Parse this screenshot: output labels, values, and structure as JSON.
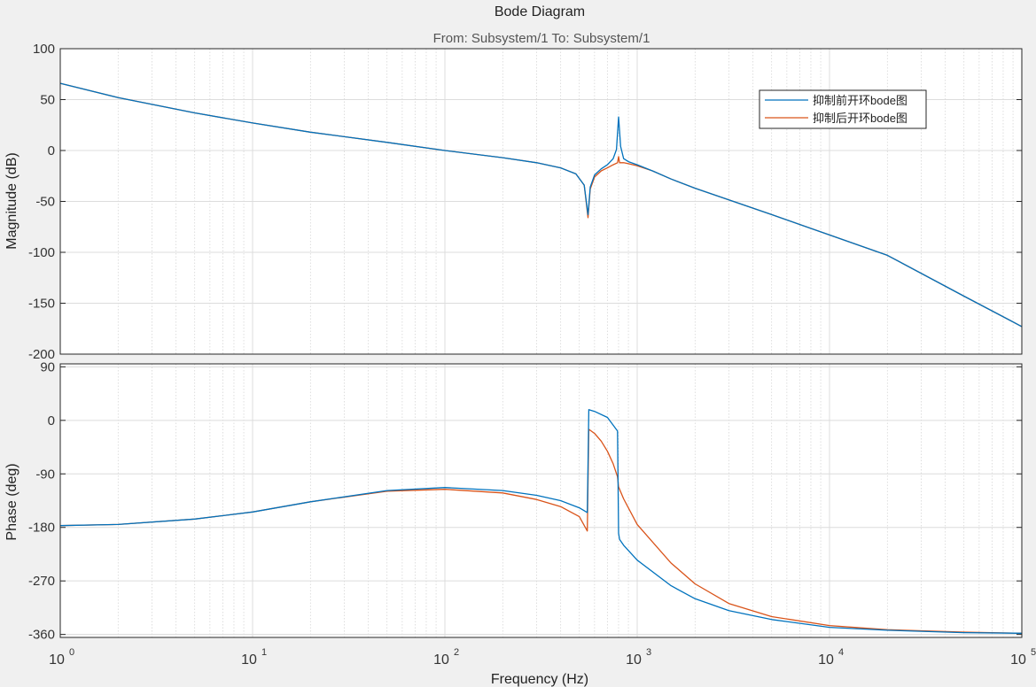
{
  "window": {
    "title": "Bode Diagram",
    "subtitle": "From: Subsystem/1  To: Subsystem/1"
  },
  "chart_data": {
    "type": "line",
    "title": "Bode Diagram",
    "subtitle": "From: Subsystem/1  To: Subsystem/1",
    "xlabel": "Frequency  (Hz)",
    "xscale": "log",
    "xlim": [
      1,
      100000
    ],
    "x_ticks": [
      {
        "base": "10",
        "exp": "0"
      },
      {
        "base": "10",
        "exp": "1"
      },
      {
        "base": "10",
        "exp": "2"
      },
      {
        "base": "10",
        "exp": "3"
      },
      {
        "base": "10",
        "exp": "4"
      },
      {
        "base": "10",
        "exp": "5"
      }
    ],
    "grid": true,
    "colors": {
      "before": "#0072bd",
      "after": "#d95319"
    },
    "legend": {
      "placement": "top-right",
      "entries": [
        "抑制前开环bode图",
        "抑制后开环bode图"
      ]
    },
    "magnitude": {
      "ylabel": "Magnitude (dB)",
      "ylim": [
        -200,
        100
      ],
      "yticks": [
        100,
        50,
        0,
        -50,
        -100,
        -150,
        -200
      ],
      "series": [
        {
          "name": "抑制前开环bode图",
          "x": [
            1,
            2,
            5,
            10,
            20,
            50,
            100,
            200,
            300,
            400,
            480,
            530,
            555,
            570,
            600,
            650,
            700,
            750,
            780,
            800,
            820,
            850,
            900,
            1000,
            1200,
            1500,
            2000,
            5000,
            10000,
            20000,
            50000,
            100000
          ],
          "y": [
            66,
            52,
            37,
            27,
            18,
            8,
            0,
            -7,
            -12,
            -17,
            -23,
            -34,
            -63,
            -36,
            -24,
            -18,
            -14,
            -8,
            1,
            33,
            4,
            -8,
            -11,
            -14,
            -20,
            -28,
            -37,
            -63,
            -83,
            -103,
            -143,
            -173
          ]
        },
        {
          "name": "抑制后开环bode图",
          "x": [
            1,
            2,
            5,
            10,
            20,
            50,
            100,
            200,
            300,
            400,
            480,
            530,
            555,
            570,
            600,
            650,
            700,
            750,
            790,
            800,
            810,
            850,
            900,
            1000,
            1200,
            1500,
            2000,
            5000,
            10000,
            20000,
            50000,
            100000
          ],
          "y": [
            66,
            52,
            37,
            27,
            18,
            8,
            0,
            -7,
            -12,
            -17,
            -23,
            -34,
            -66,
            -38,
            -26,
            -20,
            -17,
            -14,
            -12,
            -6,
            -12,
            -12,
            -13,
            -15,
            -20,
            -28,
            -37,
            -63,
            -83,
            -103,
            -143,
            -173
          ]
        }
      ]
    },
    "phase": {
      "ylabel": "Phase (deg)",
      "ylim": [
        -365,
        95
      ],
      "yticks": [
        90,
        0,
        -90,
        -180,
        -270,
        -360
      ],
      "series": [
        {
          "name": "抑制前开环bode图",
          "x": [
            1,
            2,
            5,
            10,
            20,
            50,
            100,
            200,
            300,
            400,
            500,
            550,
            560,
            600,
            700,
            790,
            800,
            810,
            850,
            1000,
            1500,
            2000,
            3000,
            5000,
            10000,
            20000,
            50000,
            100000
          ],
          "y": [
            -177,
            -175,
            -166,
            -154,
            -137,
            -118,
            -113,
            -118,
            -126,
            -135,
            -147,
            -155,
            18,
            15,
            5,
            -18,
            -190,
            -200,
            -210,
            -235,
            -278,
            -300,
            -320,
            -335,
            -348,
            -353,
            -357,
            -358
          ]
        },
        {
          "name": "抑制后开环bode图",
          "x": [
            1,
            2,
            5,
            10,
            20,
            50,
            100,
            200,
            300,
            400,
            500,
            550,
            560,
            600,
            650,
            700,
            750,
            790,
            800,
            850,
            1000,
            1500,
            2000,
            3000,
            5000,
            10000,
            20000,
            50000,
            100000
          ],
          "y": [
            -177,
            -175,
            -166,
            -154,
            -137,
            -119,
            -116,
            -122,
            -133,
            -145,
            -162,
            -186,
            -15,
            -22,
            -35,
            -52,
            -73,
            -95,
            -112,
            -132,
            -175,
            -240,
            -275,
            -308,
            -330,
            -345,
            -352,
            -356,
            -358
          ]
        }
      ]
    }
  }
}
